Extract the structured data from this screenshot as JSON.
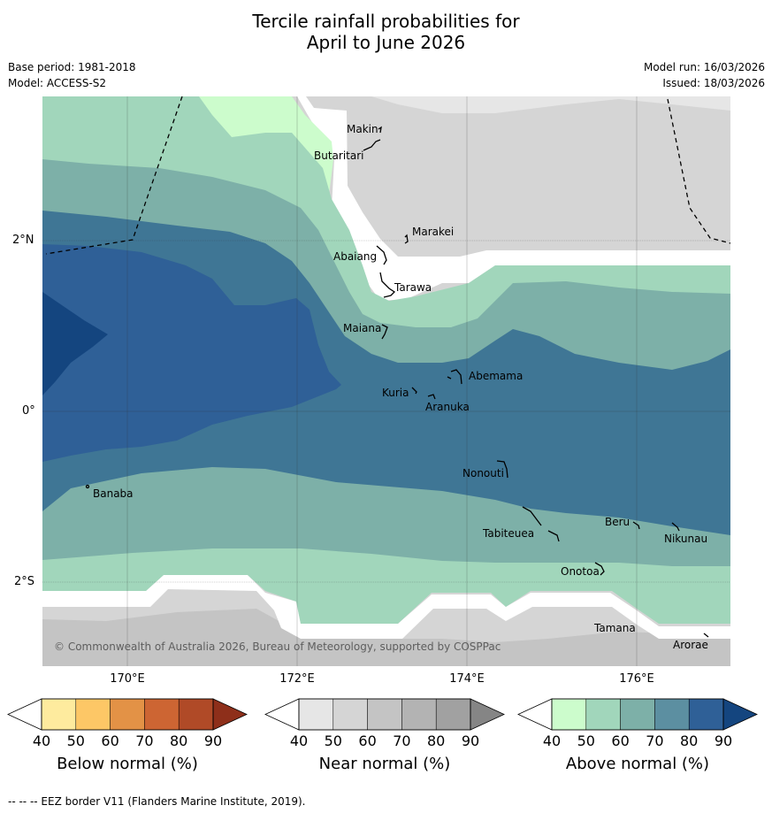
{
  "title": {
    "line1": "Tercile rainfall probabilities for",
    "line2": "April to June 2026"
  },
  "meta": {
    "base_period": "Base period: 1981-2018",
    "model": "Model: ACCESS-S2",
    "model_run": "Model run: 16/03/2026",
    "issued": "Issued: 18/03/2026"
  },
  "axes": {
    "lat_labels": [
      "2°N",
      "0°",
      "2°S"
    ],
    "lon_labels": [
      "170°E",
      "172°E",
      "174°E",
      "176°E"
    ]
  },
  "islands": [
    "Makin",
    "Butaritari",
    "Marakei",
    "Abaiang",
    "Tarawa",
    "Maiana",
    "Abemama",
    "Kuria",
    "Aranuka",
    "Nonouti",
    "Banaba",
    "Beru",
    "Tabiteuea",
    "Nikunau",
    "Onotoa",
    "Tamana",
    "Arorae"
  ],
  "copyright": "© Commonwealth of Australia 2026, Bureau of Meteorology, supported by COSPPac",
  "colorbars": [
    {
      "title": "Below normal (%)",
      "ticks": [
        "40",
        "50",
        "60",
        "70",
        "80",
        "90"
      ],
      "colors": [
        "#ffffff",
        "#feeb9e",
        "#fdc766",
        "#e39246",
        "#cd6533",
        "#b04a27",
        "#8e2f1a"
      ]
    },
    {
      "title": "Near normal (%)",
      "ticks": [
        "40",
        "50",
        "60",
        "70",
        "80",
        "90"
      ],
      "colors": [
        "#ffffff",
        "#e6e6e6",
        "#d5d5d5",
        "#c4c4c4",
        "#b3b3b3",
        "#a1a1a1",
        "#858585"
      ]
    },
    {
      "title": "Above normal (%)",
      "ticks": [
        "40",
        "50",
        "60",
        "70",
        "80",
        "90"
      ],
      "colors": [
        "#ffffff",
        "#ccfccc",
        "#a1d6bb",
        "#7db0a8",
        "#5c8fa1",
        "#2f6097",
        "#14457f"
      ]
    }
  ],
  "footer": "-- -- -- EEZ border V11 (Flanders Marine Institute, 2019)."
}
